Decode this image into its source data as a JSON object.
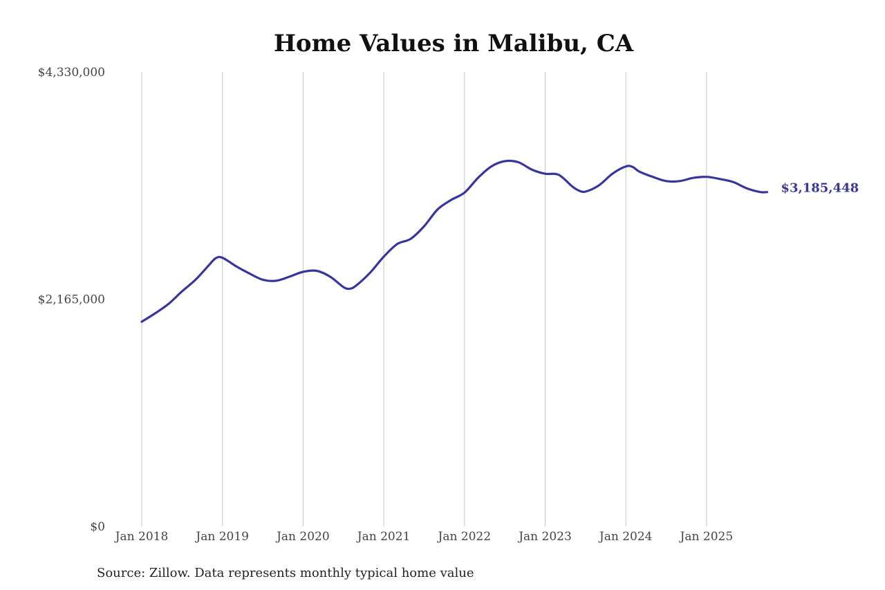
{
  "chart_data": {
    "type": "line",
    "title": "Home Values in Malibu, CA",
    "xlabel": "",
    "ylabel": "",
    "ylim": [
      0,
      4330000
    ],
    "y_ticks": [
      "$0",
      "$2,165,000",
      "$4,330,000"
    ],
    "x_ticks": [
      "Jan 2018",
      "Jan 2019",
      "Jan 2020",
      "Jan 2021",
      "Jan 2022",
      "Jan 2023",
      "Jan 2024",
      "Jan 2025"
    ],
    "grid": "vertical lines at each January",
    "series": [
      {
        "color": "#38359b",
        "end_label": "$3,185,448",
        "points": [
          [
            "2018-01",
            1950000
          ],
          [
            "2018-03",
            2030000
          ],
          [
            "2018-05",
            2120000
          ],
          [
            "2018-07",
            2240000
          ],
          [
            "2018-09",
            2350000
          ],
          [
            "2018-11",
            2490000
          ],
          [
            "2018-12",
            2555000
          ],
          [
            "2019-01",
            2560000
          ],
          [
            "2019-03",
            2480000
          ],
          [
            "2019-05",
            2410000
          ],
          [
            "2019-07",
            2350000
          ],
          [
            "2019-09",
            2340000
          ],
          [
            "2019-11",
            2380000
          ],
          [
            "2020-01",
            2425000
          ],
          [
            "2020-03",
            2435000
          ],
          [
            "2020-05",
            2380000
          ],
          [
            "2020-07",
            2280000
          ],
          [
            "2020-08",
            2265000
          ],
          [
            "2020-09",
            2300000
          ],
          [
            "2020-11",
            2420000
          ],
          [
            "2021-01",
            2570000
          ],
          [
            "2021-03",
            2690000
          ],
          [
            "2021-05",
            2740000
          ],
          [
            "2021-07",
            2860000
          ],
          [
            "2021-09",
            3020000
          ],
          [
            "2021-11",
            3110000
          ],
          [
            "2022-01",
            3180000
          ],
          [
            "2022-03",
            3320000
          ],
          [
            "2022-05",
            3430000
          ],
          [
            "2022-07",
            3480000
          ],
          [
            "2022-09",
            3470000
          ],
          [
            "2022-11",
            3400000
          ],
          [
            "2023-01",
            3360000
          ],
          [
            "2023-03",
            3350000
          ],
          [
            "2023-05",
            3240000
          ],
          [
            "2023-06",
            3200000
          ],
          [
            "2023-07",
            3190000
          ],
          [
            "2023-09",
            3250000
          ],
          [
            "2023-11",
            3360000
          ],
          [
            "2024-01",
            3430000
          ],
          [
            "2024-02",
            3425000
          ],
          [
            "2024-03",
            3380000
          ],
          [
            "2024-05",
            3330000
          ],
          [
            "2024-07",
            3290000
          ],
          [
            "2024-09",
            3290000
          ],
          [
            "2024-11",
            3320000
          ],
          [
            "2025-01",
            3330000
          ],
          [
            "2025-03",
            3310000
          ],
          [
            "2025-05",
            3280000
          ],
          [
            "2025-07",
            3220000
          ],
          [
            "2025-09",
            3185448
          ],
          [
            "2025-10",
            3185448
          ]
        ]
      }
    ],
    "source": "Source: Zillow. Data represents monthly typical home value"
  }
}
